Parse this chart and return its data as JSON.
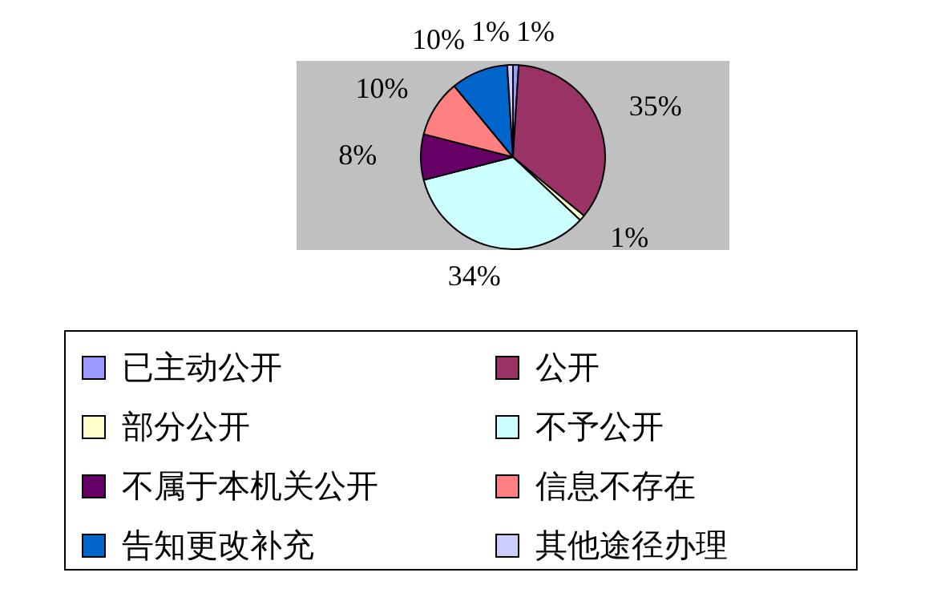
{
  "chart_data": {
    "type": "pie",
    "categories": [
      "已主动公开",
      "公开",
      "部分公开",
      "不予公开",
      "不属于本机关公开",
      "信息不存在",
      "告知更改补充",
      "其他途径办理"
    ],
    "values": [
      1,
      35,
      1,
      34,
      8,
      10,
      10,
      1
    ],
    "value_labels": [
      "1%",
      "35%",
      "1%",
      "34%",
      "8%",
      "10%",
      "10%",
      "1%"
    ],
    "colors": [
      "#9999ff",
      "#993366",
      "#ffffcc",
      "#ccffff",
      "#660066",
      "#ff8080",
      "#0066cc",
      "#ccccff"
    ],
    "legend": "bottom"
  }
}
